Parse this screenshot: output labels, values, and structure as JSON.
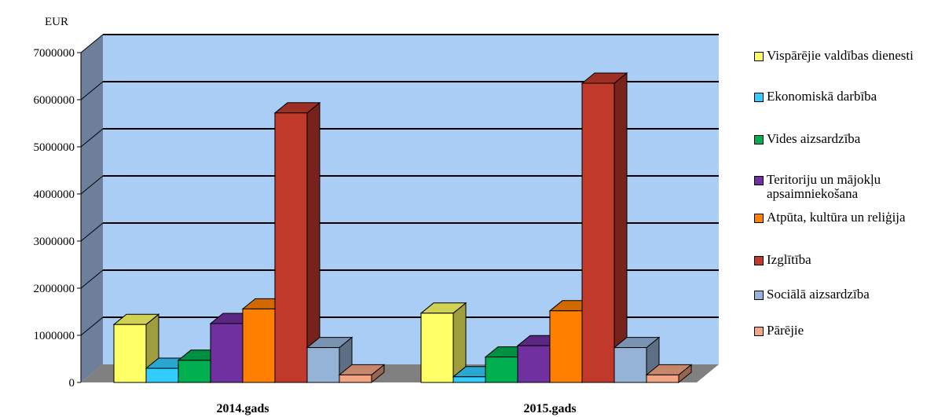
{
  "chart_data": {
    "type": "bar",
    "unit_label": "EUR",
    "categories": [
      "2014.gads",
      "2015.gads"
    ],
    "ylim": [
      0,
      7000000
    ],
    "yticks": [
      "0",
      "1000000",
      "2000000",
      "3000000",
      "4000000",
      "5000000",
      "6000000",
      "7000000"
    ],
    "grid": true,
    "legend_position": "right",
    "series": [
      {
        "name": "Vispārējie valdības dienesti",
        "color": "#ffff66",
        "values": [
          1230000,
          1470000
        ]
      },
      {
        "name": "Ekonomiskā darbība",
        "color": "#33ccff",
        "values": [
          300000,
          120000
        ]
      },
      {
        "name": "Vides aizsardzība",
        "color": "#00b050",
        "values": [
          470000,
          540000
        ]
      },
      {
        "name": "Teritoriju un mājokļu apsaimniekošana",
        "color": "#7030a0",
        "values": [
          1250000,
          780000
        ]
      },
      {
        "name": "Atpūta, kultūra un reliģija",
        "color": "#ff8000",
        "values": [
          1560000,
          1520000
        ]
      },
      {
        "name": "Izglītība",
        "color": "#c0392b",
        "values": [
          5720000,
          6350000
        ]
      },
      {
        "name": "Sociālā aizsardzība",
        "color": "#95b3d7",
        "values": [
          740000,
          740000
        ]
      },
      {
        "name": "Pārējie",
        "color": "#f4a582",
        "values": [
          160000,
          160000
        ]
      }
    ]
  },
  "colors": {
    "wall": "#a9cdf5",
    "side_wall": "#6d7f9a",
    "floor": "#808080",
    "grid": "#000000"
  }
}
